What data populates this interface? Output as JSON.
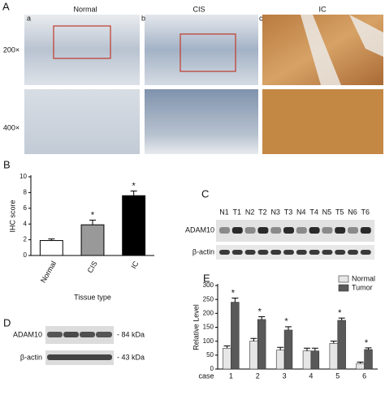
{
  "panels": {
    "A": {
      "label": "A",
      "columns": [
        {
          "letter": "a",
          "title": "Normal"
        },
        {
          "letter": "b",
          "title": "CIS"
        },
        {
          "letter": "c",
          "title": "IC"
        }
      ],
      "rows": [
        "200×",
        "400×"
      ]
    },
    "C": {
      "label": "C",
      "lanes": [
        "N1",
        "T1",
        "N2",
        "T2",
        "N3",
        "T3",
        "N4",
        "T4",
        "N5",
        "T5",
        "N6",
        "T6"
      ],
      "rows": [
        "ADAM10",
        "β-actin"
      ]
    },
    "D": {
      "label": "D",
      "rows": [
        {
          "name": "ADAM10",
          "size": "- 84 kDa"
        },
        {
          "name": "β-actin",
          "size": "- 43 kDa"
        }
      ]
    }
  },
  "chart_data": [
    {
      "panel": "B",
      "type": "bar",
      "categories": [
        "Normal",
        "CIS",
        "IC"
      ],
      "values": [
        1.9,
        3.9,
        7.6
      ],
      "errors": [
        0.2,
        0.6,
        0.6
      ],
      "colors": [
        "#ffffff",
        "#999999",
        "#000000"
      ],
      "ylim": [
        0,
        10
      ],
      "yticks": [
        0,
        2,
        4,
        6,
        8,
        10
      ],
      "ylabel": "IHC score",
      "xlabel": "Tissue type",
      "annotations": [
        {
          "text": "*",
          "category": "CIS"
        },
        {
          "text": "*",
          "category": "IC"
        }
      ]
    },
    {
      "panel": "E",
      "type": "grouped_bar",
      "categories": [
        "1",
        "2",
        "3",
        "4",
        "5",
        "6"
      ],
      "xlabel": "case",
      "series": [
        {
          "name": "Normal",
          "color": "#e6e6e6",
          "values": [
            75,
            100,
            68,
            65,
            92,
            20
          ],
          "errors": [
            8,
            10,
            10,
            10,
            8,
            5
          ]
        },
        {
          "name": "Tumor",
          "color": "#595959",
          "values": [
            240,
            178,
            140,
            65,
            175,
            70
          ],
          "errors": [
            15,
            10,
            12,
            10,
            8,
            6
          ]
        }
      ],
      "ylim": [
        0,
        300
      ],
      "yticks": [
        0,
        50,
        100,
        150,
        200,
        250,
        300
      ],
      "ylabel": "Relative Level",
      "legend": "upper right",
      "annotations": [
        {
          "text": "*",
          "category": "1"
        },
        {
          "text": "*",
          "category": "2"
        },
        {
          "text": "*",
          "category": "3"
        },
        {
          "text": "*",
          "category": "5"
        },
        {
          "text": "*",
          "category": "6"
        }
      ]
    }
  ]
}
